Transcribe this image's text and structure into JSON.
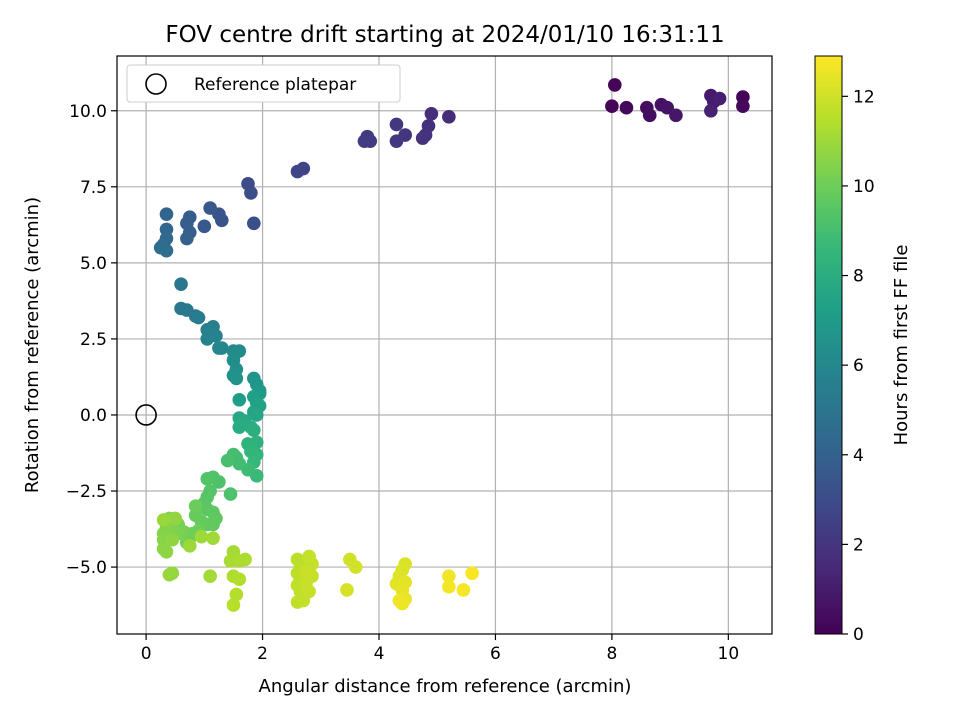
{
  "chart_data": {
    "type": "scatter",
    "title": "FOV centre drift starting at 2024/01/10 16:31:11",
    "xlabel": "Angular distance from reference (arcmin)",
    "ylabel": "Rotation from reference (arcmin)",
    "xlim": [
      -0.5,
      10.75
    ],
    "ylim": [
      -7.2,
      11.8
    ],
    "xticks": [
      0,
      2,
      4,
      6,
      8,
      10
    ],
    "yticks": [
      -5.0,
      -2.5,
      0.0,
      2.5,
      5.0,
      7.5,
      10.0
    ],
    "xtick_labels": [
      "0",
      "2",
      "4",
      "6",
      "8",
      "10"
    ],
    "ytick_labels": [
      "−5.0",
      "−2.5",
      "0.0",
      "2.5",
      "5.0",
      "7.5",
      "10.0"
    ],
    "grid": true,
    "legend": {
      "position": "upper-left",
      "entries": [
        "Reference platepar"
      ]
    },
    "colorbar": {
      "label": "Hours from first FF file",
      "colormap": "viridis",
      "range": [
        0,
        12.9
      ],
      "ticks": [
        0,
        2,
        4,
        6,
        8,
        10,
        12
      ],
      "tick_labels": [
        "0",
        "2",
        "4",
        "6",
        "8",
        "10",
        "12"
      ]
    },
    "colormap_stops": [
      "#440154",
      "#482878",
      "#3e4989",
      "#31688e",
      "#26828e",
      "#1f9e89",
      "#35b779",
      "#6ece58",
      "#b5de2b",
      "#fde725"
    ],
    "reference_point": {
      "x": 0,
      "y": 0,
      "label": "Reference platepar"
    },
    "series": [
      {
        "points": [
          [
            8.05,
            10.85,
            0.1
          ],
          [
            8.0,
            10.15,
            0.2
          ],
          [
            8.25,
            10.1,
            0.3
          ],
          [
            8.6,
            10.1,
            0.4
          ],
          [
            8.65,
            9.85,
            0.5
          ],
          [
            8.85,
            10.2,
            0.6
          ],
          [
            8.95,
            10.1,
            0.7
          ],
          [
            9.1,
            9.85,
            0.8
          ],
          [
            9.7,
            10.5,
            0.9
          ],
          [
            9.75,
            10.3,
            1.0
          ],
          [
            9.85,
            10.4,
            1.1
          ],
          [
            9.7,
            10.0,
            1.2
          ],
          [
            10.25,
            10.45,
            0.15
          ],
          [
            10.25,
            10.15,
            0.25
          ],
          [
            5.2,
            9.8,
            1.6
          ],
          [
            4.9,
            9.9,
            1.7
          ],
          [
            4.85,
            9.5,
            1.8
          ],
          [
            4.8,
            9.2,
            1.85
          ],
          [
            4.75,
            9.1,
            1.9
          ],
          [
            4.45,
            9.2,
            2.0
          ],
          [
            4.3,
            9.55,
            2.05
          ],
          [
            4.3,
            9.0,
            2.1
          ],
          [
            3.85,
            9.0,
            2.2
          ],
          [
            3.8,
            9.15,
            2.25
          ],
          [
            3.75,
            9.0,
            2.3
          ],
          [
            2.7,
            8.1,
            2.6
          ],
          [
            2.6,
            8.0,
            2.7
          ],
          [
            1.75,
            7.6,
            3.0
          ],
          [
            1.8,
            7.3,
            3.1
          ],
          [
            1.85,
            6.3,
            3.2
          ],
          [
            1.3,
            6.4,
            3.3
          ],
          [
            1.25,
            6.6,
            3.4
          ],
          [
            1.1,
            6.8,
            3.5
          ],
          [
            1.0,
            6.2,
            3.6
          ],
          [
            0.75,
            6.5,
            3.7
          ],
          [
            0.7,
            6.3,
            3.8
          ],
          [
            0.75,
            6.0,
            3.9
          ],
          [
            0.7,
            5.8,
            4.0
          ],
          [
            0.35,
            6.6,
            4.1
          ],
          [
            0.35,
            6.1,
            4.2
          ],
          [
            0.35,
            5.8,
            4.3
          ],
          [
            0.3,
            5.6,
            4.4
          ],
          [
            0.35,
            5.4,
            4.5
          ],
          [
            0.25,
            5.5,
            4.6
          ],
          [
            0.6,
            4.3,
            5.0
          ],
          [
            0.6,
            3.5,
            5.1
          ],
          [
            0.7,
            3.45,
            5.2
          ],
          [
            0.85,
            3.25,
            5.3
          ],
          [
            0.9,
            3.2,
            5.4
          ],
          [
            1.15,
            2.9,
            5.5
          ],
          [
            1.05,
            2.8,
            5.6
          ],
          [
            1.05,
            2.5,
            5.7
          ],
          [
            1.2,
            2.6,
            5.8
          ],
          [
            1.25,
            2.2,
            5.9
          ],
          [
            1.3,
            2.2,
            6.0
          ],
          [
            1.5,
            2.1,
            6.1
          ],
          [
            1.6,
            2.1,
            6.2
          ],
          [
            1.5,
            1.8,
            6.3
          ],
          [
            1.55,
            1.5,
            6.4
          ],
          [
            1.5,
            1.3,
            6.5
          ],
          [
            1.55,
            1.2,
            6.6
          ],
          [
            1.85,
            1.2,
            6.7
          ],
          [
            1.9,
            1.0,
            6.8
          ],
          [
            1.95,
            0.8,
            6.9
          ],
          [
            1.95,
            0.7,
            7.0
          ],
          [
            1.6,
            0.5,
            7.1
          ],
          [
            1.85,
            0.6,
            7.2
          ],
          [
            1.9,
            0.4,
            7.3
          ],
          [
            1.95,
            0.3,
            7.4
          ],
          [
            1.85,
            0.1,
            7.5
          ],
          [
            1.9,
            0.0,
            7.6
          ],
          [
            1.6,
            -0.1,
            7.7
          ],
          [
            1.7,
            -0.2,
            7.8
          ],
          [
            1.6,
            -0.4,
            7.9
          ],
          [
            1.8,
            -0.4,
            8.0
          ],
          [
            1.85,
            -0.5,
            8.1
          ],
          [
            1.9,
            -0.9,
            8.2
          ],
          [
            1.75,
            -0.95,
            8.3
          ],
          [
            1.8,
            -1.2,
            8.4
          ],
          [
            1.9,
            -1.3,
            8.5
          ],
          [
            1.85,
            -1.55,
            8.6
          ],
          [
            1.9,
            -2.0,
            8.7
          ],
          [
            1.75,
            -1.8,
            8.8
          ],
          [
            1.6,
            -1.6,
            8.9
          ],
          [
            1.55,
            -1.4,
            8.95
          ],
          [
            1.5,
            -1.3,
            9.0
          ],
          [
            1.4,
            -1.5,
            9.1
          ],
          [
            1.45,
            -2.6,
            9.2
          ],
          [
            1.25,
            -2.2,
            9.25
          ],
          [
            1.15,
            -2.05,
            9.3
          ],
          [
            1.05,
            -2.1,
            9.35
          ],
          [
            1.1,
            -2.5,
            9.4
          ],
          [
            1.05,
            -2.7,
            9.45
          ],
          [
            1.0,
            -2.9,
            9.5
          ],
          [
            1.05,
            -3.1,
            9.55
          ],
          [
            1.15,
            -3.2,
            9.6
          ],
          [
            1.2,
            -3.4,
            9.65
          ],
          [
            1.15,
            -3.6,
            9.7
          ],
          [
            1.05,
            -3.6,
            9.75
          ],
          [
            0.95,
            -3.5,
            9.8
          ],
          [
            0.85,
            -3.3,
            9.85
          ],
          [
            0.85,
            -3.0,
            9.9
          ],
          [
            0.9,
            -3.8,
            9.95
          ],
          [
            0.8,
            -3.9,
            10.0
          ],
          [
            0.75,
            -4.05,
            10.05
          ],
          [
            0.7,
            -4.2,
            10.1
          ],
          [
            0.65,
            -3.85,
            10.15
          ],
          [
            0.55,
            -3.6,
            10.2
          ],
          [
            0.6,
            -3.9,
            10.25
          ],
          [
            0.5,
            -3.9,
            10.3
          ],
          [
            0.45,
            -3.6,
            10.35
          ],
          [
            0.4,
            -3.4,
            10.4
          ],
          [
            0.35,
            -3.7,
            10.45
          ],
          [
            0.3,
            -3.9,
            10.5
          ],
          [
            0.3,
            -4.1,
            10.55
          ],
          [
            0.3,
            -4.4,
            10.6
          ],
          [
            0.35,
            -4.5,
            10.65
          ],
          [
            0.45,
            -4.1,
            10.7
          ],
          [
            0.5,
            -3.4,
            10.75
          ],
          [
            0.45,
            -5.2,
            10.8
          ],
          [
            0.4,
            -5.25,
            10.85
          ],
          [
            0.3,
            -3.45,
            10.9
          ],
          [
            0.75,
            -4.3,
            10.95
          ],
          [
            0.95,
            -4.0,
            11.0
          ],
          [
            1.15,
            -4.05,
            11.05
          ],
          [
            1.1,
            -5.3,
            11.1
          ],
          [
            1.5,
            -4.5,
            11.15
          ],
          [
            1.45,
            -4.8,
            11.2
          ],
          [
            1.6,
            -4.8,
            11.25
          ],
          [
            1.7,
            -4.75,
            11.3
          ],
          [
            1.5,
            -5.3,
            11.35
          ],
          [
            1.6,
            -5.4,
            11.4
          ],
          [
            1.55,
            -5.9,
            11.45
          ],
          [
            1.5,
            -6.25,
            11.5
          ],
          [
            2.6,
            -4.75,
            11.55
          ],
          [
            2.65,
            -5.0,
            11.6
          ],
          [
            2.6,
            -5.2,
            11.62
          ],
          [
            2.65,
            -5.4,
            11.64
          ],
          [
            2.6,
            -5.6,
            11.66
          ],
          [
            2.65,
            -5.8,
            11.68
          ],
          [
            2.6,
            -6.15,
            11.7
          ],
          [
            2.7,
            -6.1,
            11.72
          ],
          [
            2.8,
            -4.65,
            11.74
          ],
          [
            2.85,
            -4.9,
            11.76
          ],
          [
            2.8,
            -5.1,
            11.78
          ],
          [
            2.85,
            -5.3,
            11.8
          ],
          [
            2.75,
            -5.5,
            11.82
          ],
          [
            2.8,
            -5.8,
            11.84
          ],
          [
            2.75,
            -5.15,
            11.86
          ],
          [
            3.5,
            -4.75,
            12.0
          ],
          [
            3.6,
            -5.0,
            12.05
          ],
          [
            3.45,
            -5.75,
            12.1
          ],
          [
            4.45,
            -4.9,
            12.2
          ],
          [
            4.4,
            -5.1,
            12.25
          ],
          [
            4.35,
            -5.3,
            12.3
          ],
          [
            4.3,
            -5.55,
            12.35
          ],
          [
            4.45,
            -5.5,
            12.4
          ],
          [
            4.4,
            -5.75,
            12.45
          ],
          [
            4.45,
            -6.05,
            12.5
          ],
          [
            4.4,
            -6.2,
            12.55
          ],
          [
            4.35,
            -6.1,
            12.6
          ],
          [
            5.2,
            -5.3,
            12.65
          ],
          [
            5.2,
            -5.65,
            12.7
          ],
          [
            5.45,
            -5.75,
            12.75
          ],
          [
            5.6,
            -5.2,
            12.8
          ]
        ]
      }
    ]
  }
}
